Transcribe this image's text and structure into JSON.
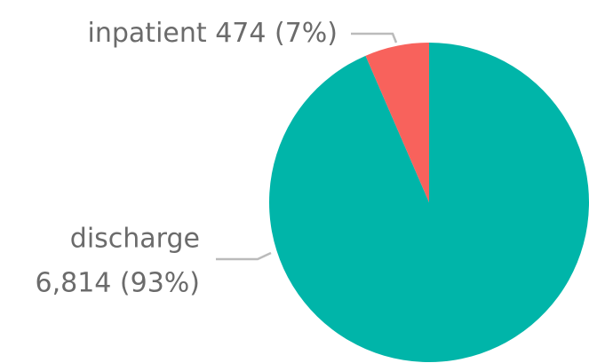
{
  "chart_data": {
    "type": "pie",
    "categories": [
      "inpatient",
      "discharge"
    ],
    "values": [
      474,
      6814
    ],
    "value_labels": [
      "474 (7%)",
      "6,814 (93%)"
    ],
    "colors": [
      "#f8625c",
      "#00b5a9"
    ]
  }
}
